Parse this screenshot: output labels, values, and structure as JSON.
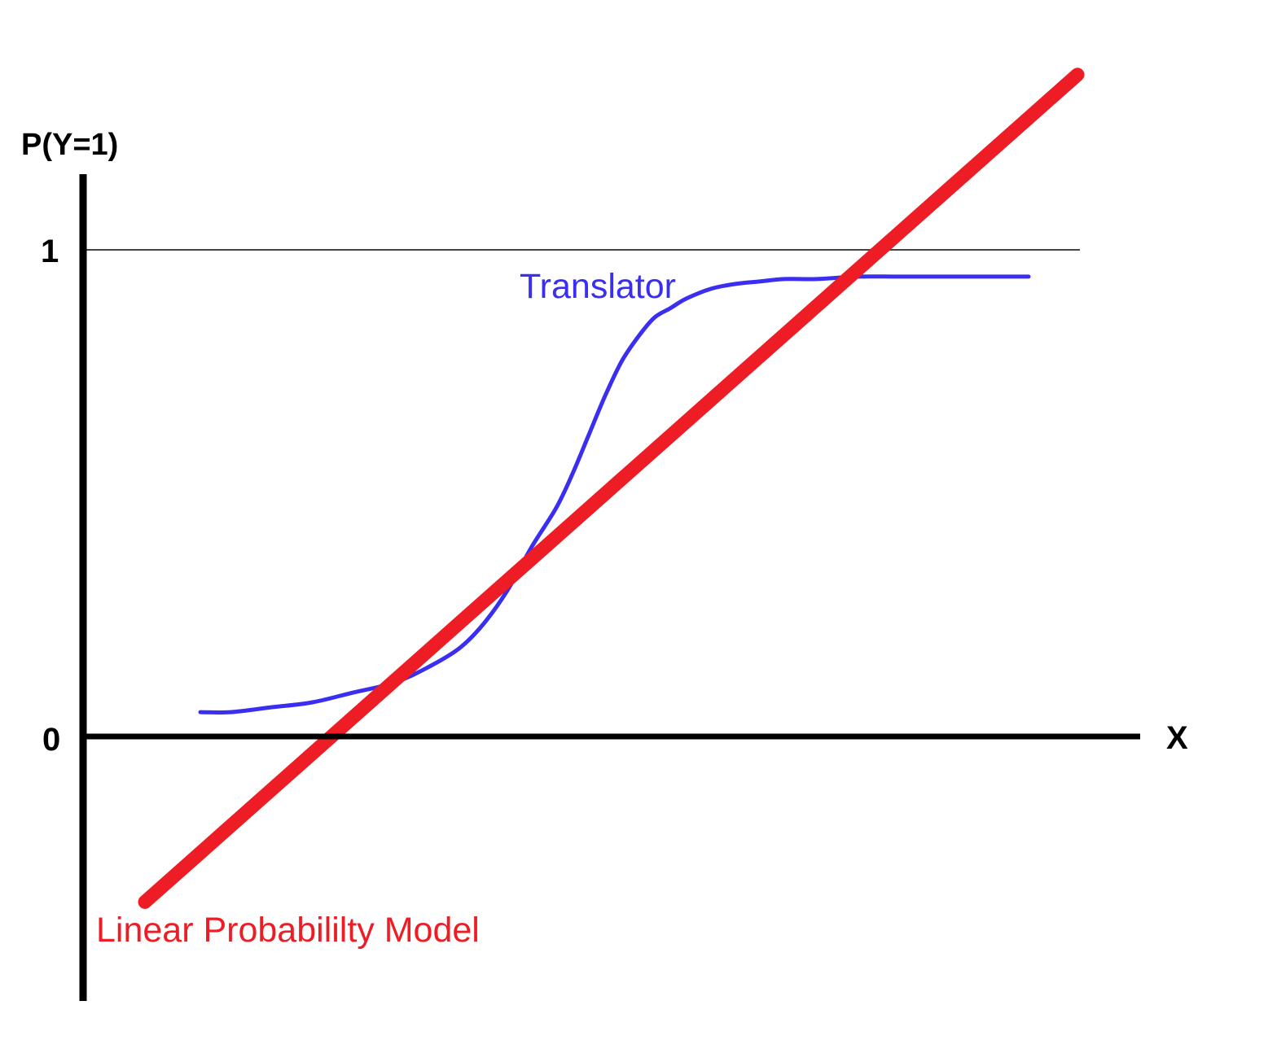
{
  "chart_data": {
    "type": "line",
    "ylabel": "P(Y=1)",
    "xlabel": "X",
    "y_ticks": [
      "1",
      "0"
    ],
    "ylim": [
      -0.55,
      1.55
    ],
    "xlim": [
      0,
      13
    ],
    "reference_line": {
      "y": 1
    },
    "series": [
      {
        "name": "Translator",
        "color": "#3a2ff0",
        "x": [
          1.43,
          1.8,
          2.3,
          2.8,
          3.3,
          3.8,
          4.2,
          4.6,
          4.9,
          5.2,
          5.5,
          5.8,
          6.0,
          6.2,
          6.4,
          6.6,
          6.8,
          7.0,
          7.2,
          7.4,
          7.7,
          8.0,
          8.3,
          8.6,
          9.0,
          9.5,
          10.0,
          10.5,
          11.0,
          11.6
        ],
        "y": [
          0.05,
          0.05,
          0.06,
          0.07,
          0.09,
          0.11,
          0.14,
          0.18,
          0.23,
          0.3,
          0.39,
          0.47,
          0.54,
          0.62,
          0.7,
          0.77,
          0.82,
          0.86,
          0.88,
          0.9,
          0.92,
          0.93,
          0.935,
          0.94,
          0.94,
          0.945,
          0.945,
          0.945,
          0.945,
          0.945
        ]
      },
      {
        "name": "Linear Probabililty Model",
        "color": "#ee1c25",
        "x": [
          0.75,
          12.2
        ],
        "y": [
          -0.34,
          1.36
        ]
      }
    ]
  }
}
